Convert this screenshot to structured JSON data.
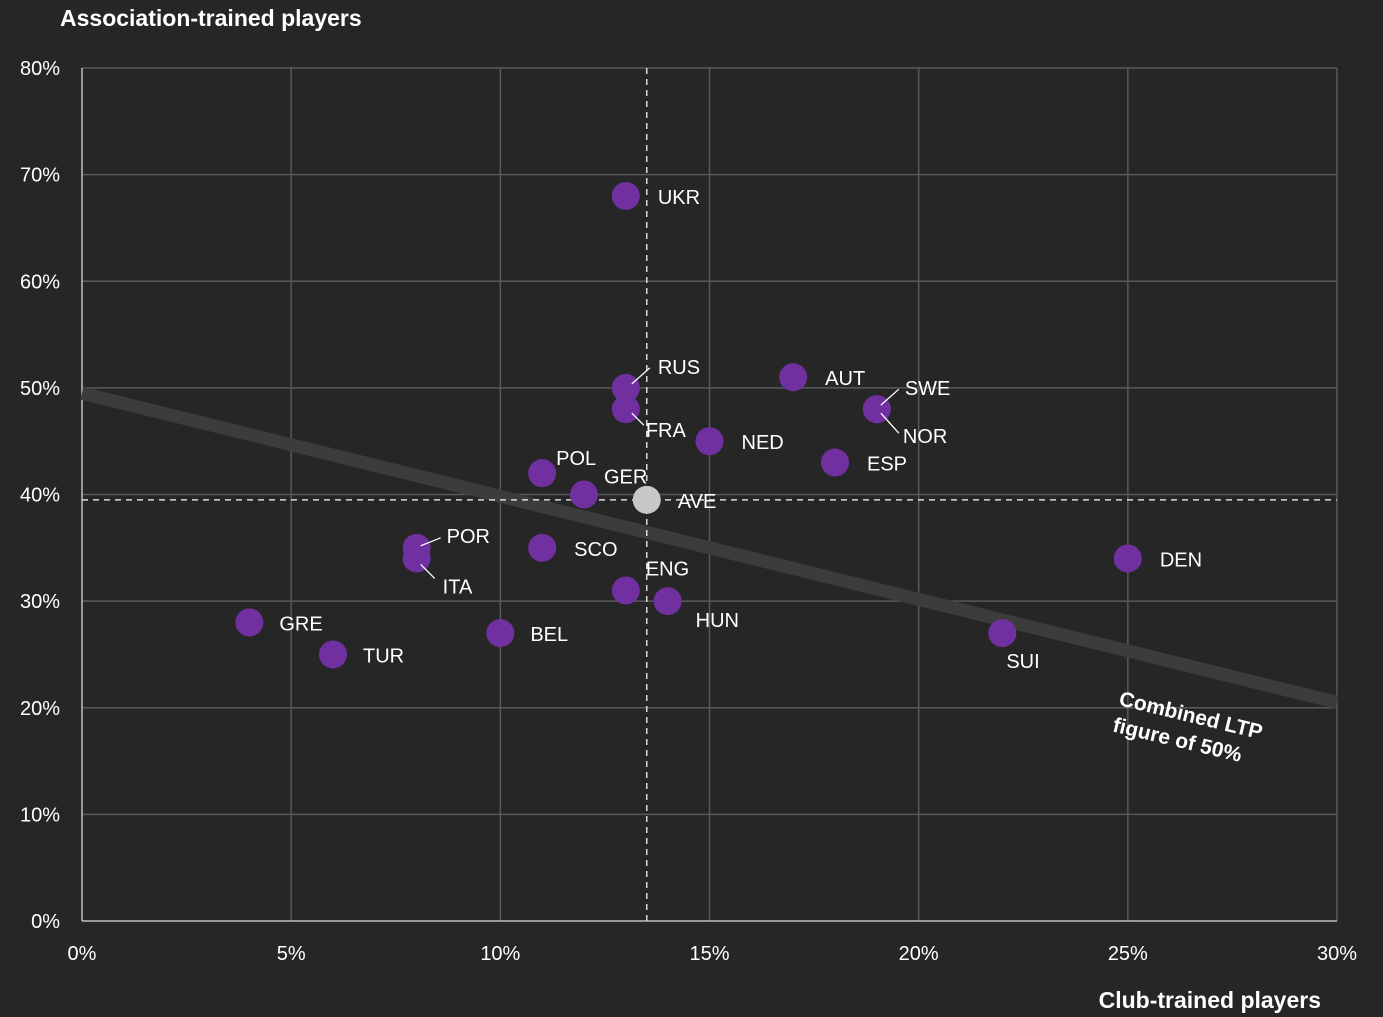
{
  "chart_data": {
    "type": "scatter",
    "title": "",
    "xlabel": "Club-trained players",
    "ylabel": "Association-trained players",
    "xlim": [
      0,
      30
    ],
    "ylim": [
      0,
      80
    ],
    "x_ticks": [
      "0%",
      "5%",
      "10%",
      "15%",
      "20%",
      "25%",
      "30%"
    ],
    "y_ticks": [
      "0%",
      "10%",
      "20%",
      "30%",
      "40%",
      "50%",
      "60%",
      "70%",
      "80%"
    ],
    "grid": true,
    "units": "%",
    "points": [
      {
        "label": "UKR",
        "x": 13,
        "y": 68
      },
      {
        "label": "RUS",
        "x": 13,
        "y": 50
      },
      {
        "label": "FRA",
        "x": 13,
        "y": 48
      },
      {
        "label": "AUT",
        "x": 17,
        "y": 51
      },
      {
        "label": "SWE",
        "x": 19,
        "y": 48
      },
      {
        "label": "NOR",
        "x": 19,
        "y": 48
      },
      {
        "label": "NED",
        "x": 15,
        "y": 45
      },
      {
        "label": "ESP",
        "x": 18,
        "y": 43
      },
      {
        "label": "POL",
        "x": 11,
        "y": 42
      },
      {
        "label": "GER",
        "x": 12,
        "y": 40
      },
      {
        "label": "POR",
        "x": 8,
        "y": 35
      },
      {
        "label": "ITA",
        "x": 8,
        "y": 34
      },
      {
        "label": "SCO",
        "x": 11,
        "y": 35
      },
      {
        "label": "ENG",
        "x": 13,
        "y": 31
      },
      {
        "label": "HUN",
        "x": 14,
        "y": 30
      },
      {
        "label": "DEN",
        "x": 25,
        "y": 34
      },
      {
        "label": "SUI",
        "x": 22,
        "y": 27
      },
      {
        "label": "GRE",
        "x": 4,
        "y": 28
      },
      {
        "label": "TUR",
        "x": 6,
        "y": 25
      },
      {
        "label": "BEL",
        "x": 10,
        "y": 27
      }
    ],
    "average": {
      "label": "AVE",
      "x": 13.5,
      "y": 39.5
    },
    "reference_line": {
      "label_line1": "Combined LTP",
      "label_line2": "figure of 50%",
      "from": [
        0,
        49.5
      ],
      "to": [
        30,
        20.5
      ]
    },
    "colors": {
      "background": "#262626",
      "point": "#7030a0",
      "average_point": "#c8c8c8",
      "grid": "#595959",
      "axis": "#bfbfbf",
      "text": "#ffffff",
      "reference_line": "#3c3c3c"
    }
  }
}
